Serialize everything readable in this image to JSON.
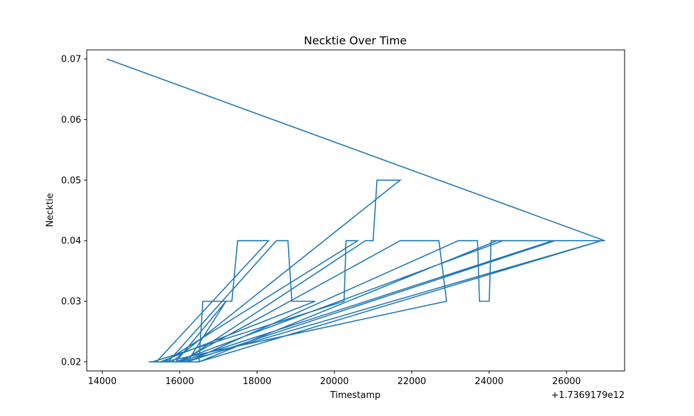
{
  "chart_data": {
    "type": "line",
    "title": "Necktie Over Time",
    "xlabel": "Timestamp",
    "ylabel": "Necktie",
    "x_offset_label": "+1.7369179e12",
    "xlim": [
      13600,
      27500
    ],
    "ylim": [
      0.0185,
      0.0715
    ],
    "x_ticks": [
      14000,
      16000,
      18000,
      20000,
      22000,
      24000,
      26000
    ],
    "x_tick_labels": [
      "14000",
      "16000",
      "18000",
      "20000",
      "22000",
      "24000",
      "26000"
    ],
    "y_ticks": [
      0.02,
      0.03,
      0.04,
      0.05,
      0.06,
      0.07
    ],
    "y_tick_labels": [
      "0.02",
      "0.03",
      "0.04",
      "0.05",
      "0.06",
      "0.07"
    ],
    "grid": false,
    "series": [
      {
        "color": "#1f77b4",
        "x": [
          14120,
          26990,
          25640,
          16000,
          16500,
          16600,
          17200,
          15900,
          15200,
          15400,
          16200,
          17200,
          17350,
          17500,
          18300,
          15400,
          15700,
          18500,
          18800,
          18900,
          19500,
          15500,
          15300,
          20250,
          20300,
          20600,
          15600,
          15550,
          16050,
          20800,
          21000,
          21100,
          21700,
          15800,
          15650,
          16000,
          21700,
          22700,
          22900,
          15600,
          15700,
          16000,
          16200,
          23200,
          23700,
          23750,
          24000,
          24050,
          24350,
          15900,
          16100,
          26900,
          16500,
          24200,
          24400,
          24500,
          25700,
          16200
        ],
        "y": [
          0.07,
          0.04,
          0.04,
          0.02,
          0.02,
          0.03,
          0.03,
          0.02,
          0.02,
          0.02,
          0.02,
          0.03,
          0.03,
          0.04,
          0.04,
          0.02,
          0.02,
          0.04,
          0.04,
          0.03,
          0.03,
          0.02,
          0.02,
          0.03,
          0.04,
          0.04,
          0.02,
          0.02,
          0.02,
          0.04,
          0.04,
          0.05,
          0.05,
          0.02,
          0.02,
          0.02,
          0.04,
          0.04,
          0.03,
          0.02,
          0.02,
          0.02,
          0.02,
          0.04,
          0.04,
          0.03,
          0.03,
          0.04,
          0.04,
          0.02,
          0.02,
          0.04,
          0.02,
          0.04,
          0.04,
          0.04,
          0.04,
          0.02
        ]
      }
    ]
  }
}
